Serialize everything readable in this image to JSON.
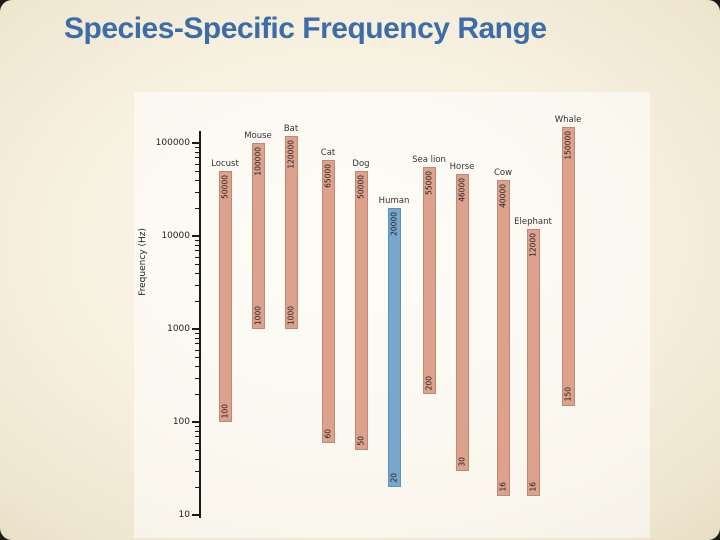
{
  "slide": {
    "title": "Species-Specific Frequency Range",
    "title_color": "#3c6da9"
  },
  "chart_data": {
    "type": "bar",
    "subtype": "floating-range-bars",
    "scale": "log10",
    "title": "Species-Specific Frequency Range",
    "xlabel": "",
    "ylabel": "Frequency (Hz)",
    "ylim": [
      10,
      100000
    ],
    "yticks": [
      "100000",
      "10000",
      "1000",
      "100",
      "10"
    ],
    "grid": false,
    "legend": false,
    "colors": {
      "bar_fill": "#dda28e",
      "bar_border": "#c08872",
      "highlight_fill": "#78a7cb",
      "highlight_border": "#5e92b9",
      "axis": "#1a1a1a"
    },
    "series": [
      {
        "name": "Locust",
        "min_hz": 100,
        "max_hz": 50000,
        "min_label": "100",
        "max_label": "50000",
        "highlight": false
      },
      {
        "name": "Mouse",
        "min_hz": 1000,
        "max_hz": 100000,
        "min_label": "1000",
        "max_label": "100000",
        "highlight": false
      },
      {
        "name": "Bat",
        "min_hz": 1000,
        "max_hz": 120000,
        "min_label": "1000",
        "max_label": "120000",
        "highlight": false
      },
      {
        "name": "Cat",
        "min_hz": 60,
        "max_hz": 65000,
        "min_label": "60",
        "max_label": "65000",
        "highlight": false
      },
      {
        "name": "Dog",
        "min_hz": 50,
        "max_hz": 50000,
        "min_label": "50",
        "max_label": "50000",
        "highlight": false
      },
      {
        "name": "Human",
        "min_hz": 20,
        "max_hz": 20000,
        "min_label": "20",
        "max_label": "20000",
        "highlight": true
      },
      {
        "name": "Sea lion",
        "min_hz": 200,
        "max_hz": 55000,
        "min_label": "200",
        "max_label": "55000",
        "highlight": false
      },
      {
        "name": "Horse",
        "min_hz": 30,
        "max_hz": 46000,
        "min_label": "30",
        "max_label": "46000",
        "highlight": false
      },
      {
        "name": "Cow",
        "min_hz": 16,
        "max_hz": 40000,
        "min_label": "16",
        "max_label": "40000",
        "highlight": false
      },
      {
        "name": "Elephant",
        "min_hz": 16,
        "max_hz": 12000,
        "min_label": "16",
        "max_label": "12000",
        "highlight": false
      },
      {
        "name": "Whale",
        "min_hz": 150,
        "max_hz": 150000,
        "min_label": "150",
        "max_label": "150000",
        "highlight": false
      }
    ]
  }
}
